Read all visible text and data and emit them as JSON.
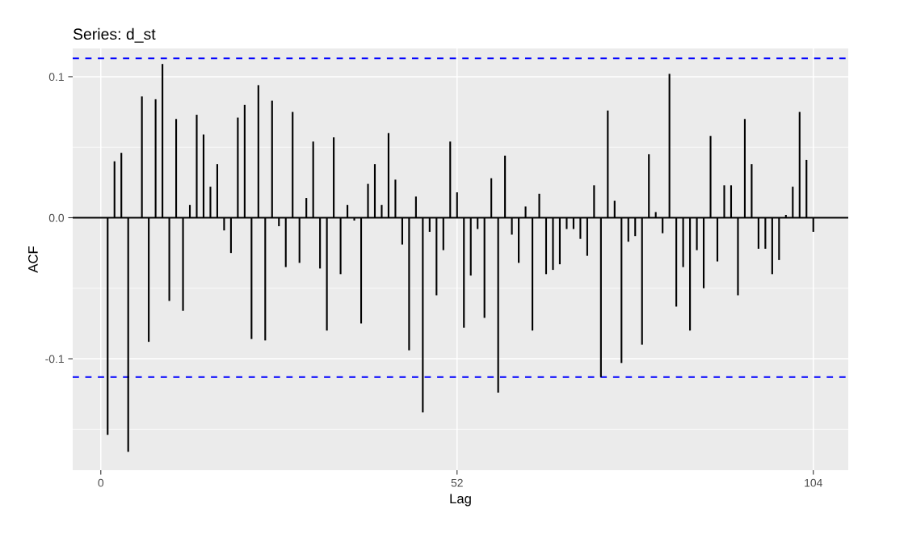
{
  "chart_data": {
    "type": "bar",
    "title": "Series: d_st",
    "xlabel": "Lag",
    "ylabel": "ACF",
    "x": [
      1,
      2,
      3,
      4,
      5,
      6,
      7,
      8,
      9,
      10,
      11,
      12,
      13,
      14,
      15,
      16,
      17,
      18,
      19,
      20,
      21,
      22,
      23,
      24,
      25,
      26,
      27,
      28,
      29,
      30,
      31,
      32,
      33,
      34,
      35,
      36,
      37,
      38,
      39,
      40,
      41,
      42,
      43,
      44,
      45,
      46,
      47,
      48,
      49,
      50,
      51,
      52,
      53,
      54,
      55,
      56,
      57,
      58,
      59,
      60,
      61,
      62,
      63,
      64,
      65,
      66,
      67,
      68,
      69,
      70,
      71,
      72,
      73,
      74,
      75,
      76,
      77,
      78,
      79,
      80,
      81,
      82,
      83,
      84,
      85,
      86,
      87,
      88,
      89,
      90,
      91,
      92,
      93,
      94,
      95,
      96,
      97,
      98,
      99,
      100,
      101,
      102,
      103,
      104
    ],
    "values": [
      -0.154,
      0.04,
      0.046,
      -0.166,
      0.0,
      0.086,
      -0.088,
      0.084,
      0.109,
      -0.059,
      0.07,
      -0.066,
      0.009,
      0.073,
      0.059,
      0.022,
      0.038,
      -0.009,
      -0.025,
      0.071,
      0.08,
      -0.086,
      0.094,
      -0.087,
      0.083,
      -0.006,
      -0.035,
      0.075,
      -0.032,
      0.014,
      0.054,
      -0.036,
      -0.08,
      0.057,
      -0.04,
      0.009,
      -0.002,
      -0.075,
      0.024,
      0.038,
      0.009,
      0.06,
      0.027,
      -0.019,
      -0.094,
      0.015,
      -0.138,
      -0.01,
      -0.055,
      -0.023,
      0.054,
      0.018,
      -0.078,
      -0.041,
      -0.008,
      -0.071,
      0.028,
      -0.124,
      0.044,
      -0.012,
      -0.032,
      0.008,
      -0.08,
      0.017,
      -0.04,
      -0.037,
      -0.033,
      -0.008,
      -0.008,
      -0.015,
      -0.027,
      0.023,
      -0.113,
      0.076,
      0.012,
      -0.103,
      -0.017,
      -0.013,
      -0.09,
      0.045,
      0.004,
      -0.011,
      0.102,
      -0.063,
      -0.035,
      -0.08,
      -0.023,
      -0.05,
      0.058,
      -0.031,
      0.023,
      0.023,
      -0.055,
      0.07,
      0.038,
      -0.022,
      -0.022,
      -0.04,
      -0.03,
      0.002,
      0.022,
      0.075,
      0.041,
      -0.01
    ],
    "color": "#000000",
    "xlim": [
      -4.1,
      109.1
    ],
    "ylim": [
      -0.179,
      0.12
    ],
    "xticks": [
      0,
      52,
      104
    ],
    "yticks": [
      {
        "value": -0.15,
        "label": null
      },
      {
        "value": -0.1,
        "label": "-0.1"
      },
      {
        "value": -0.05,
        "label": null
      },
      {
        "value": 0.0,
        "label": "0.0"
      },
      {
        "value": 0.05,
        "label": null
      },
      {
        "value": 0.1,
        "label": "0.1"
      }
    ],
    "grid": true,
    "ref_lines": [
      {
        "axis": "y",
        "value": 0.113,
        "color": "#0000ff",
        "line_style": "dashed"
      },
      {
        "axis": "y",
        "value": -0.113,
        "color": "#0000ff",
        "line_style": "dashed"
      },
      {
        "axis": "y",
        "value": 0,
        "color": "#000000",
        "line_style": "solid"
      }
    ]
  }
}
